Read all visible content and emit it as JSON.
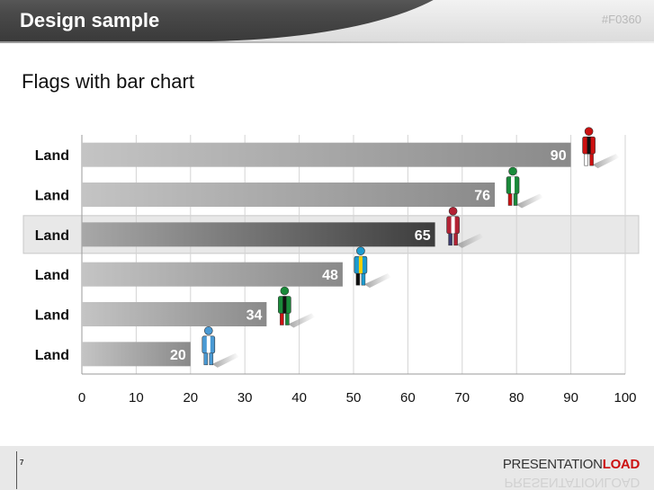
{
  "header": {
    "title": "Design sample",
    "code": "#F0360"
  },
  "subtitle": "Flags with bar chart",
  "watermark": "PRESENTATIONLOAD",
  "footer": {
    "page_number": "7",
    "brand_part1": "PRESENTATION",
    "brand_part2": "LOAD"
  },
  "colors": {
    "bar_light": "#c4c4c4",
    "bar_dark": "#8a8a8a",
    "highlight_bar_dark": "#3c3c3c",
    "highlight_row_fill": "#e8e8e8",
    "brand_red": "#cc1111"
  },
  "chart_data": {
    "type": "bar",
    "orientation": "horizontal",
    "categories": [
      "Land",
      "Land",
      "Land",
      "Land",
      "Land",
      "Land"
    ],
    "values": [
      90,
      76,
      65,
      48,
      34,
      20
    ],
    "xlim": [
      0,
      100
    ],
    "x_ticks": [
      "0",
      "10",
      "20",
      "30",
      "40",
      "50",
      "60",
      "70",
      "80",
      "90",
      "100"
    ],
    "highlighted_category_index": 2,
    "grid": true,
    "data_labels": true,
    "markers": [
      "person-flag-trinidad-icon",
      "person-flag-mexico-icon",
      "person-flag-usa-icon",
      "person-flag-bahamas-icon",
      "person-flag-stkitts-icon",
      "person-flag-guatemala-icon"
    ]
  }
}
